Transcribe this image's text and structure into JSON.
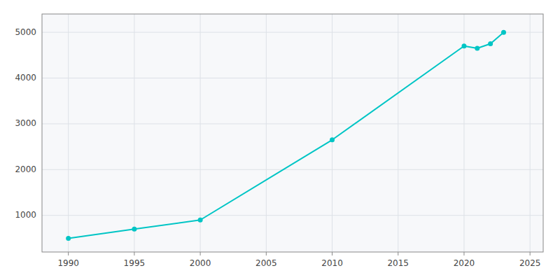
{
  "chart_data": {
    "type": "line",
    "x": [
      1990,
      1995,
      2000,
      2010,
      2020,
      2021,
      2022,
      2023
    ],
    "values": [
      500,
      700,
      900,
      2650,
      4700,
      4650,
      4750,
      5000
    ],
    "color": "#00C5C5",
    "marker": "circle",
    "xlim": [
      1988,
      2026
    ],
    "ylim": [
      200,
      5400
    ],
    "xticks": [
      1990,
      1995,
      2000,
      2005,
      2010,
      2015,
      2020,
      2025
    ],
    "yticks": [
      1000,
      2000,
      3000,
      4000,
      5000
    ],
    "grid": true
  }
}
